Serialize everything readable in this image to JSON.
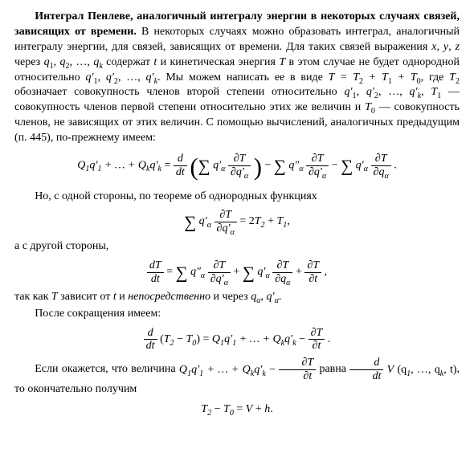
{
  "heading": "Интеграл Пенлеве, аналогичный интегралу энергии в некоторых случаях связей, зависящих от времени.",
  "p1a": " В некоторых случаях можно образовать интеграл, аналогичный интегралу энергии, для связей, зависящих от времени. Для таких связей выражения ",
  "p1_vars1": "x",
  "p1_comma1": ", ",
  "p1_vars2": "y",
  "p1_comma2": ", ",
  "p1_vars3": "z",
  "p1b": " через ",
  "p1_q1": "q",
  "p1_q1s": "1",
  "p1_q2": "q",
  "p1_q2s": "2",
  "p1_dots": ", …, ",
  "p1_qk": "q",
  "p1_qks": "k",
  "p1c": " содержат ",
  "p1_t": "t",
  "p1d": " и кинетическая энергия ",
  "p1_T": "T",
  "p1e": " в этом случае не будет однородной относительно ",
  "p1_qp1": "q′",
  "p1_qp1s": "1",
  "p1_qp2": "q′",
  "p1_qp2s": "2",
  "p1_qpk": "q′",
  "p1_qpks": "k",
  "p1f": ". Мы можем написать ее в виде ",
  "p1_Teq": "T = T",
  "p1_T2s": "2",
  "p1_plus1": " + T",
  "p1_T1s": "1",
  "p1_plus2": " + T",
  "p1_T0s": "0",
  "p1g": ", где ",
  "p1_T2": "T",
  "p1_T2sub": "2",
  "p1h": " обозначает совокупность членов второй степени относительно ",
  "p1i": ", ",
  "p1_T1": "T",
  "p1_T1sub": "1",
  "p1j": " — совокупность членов первой степени относительно этих же величин и ",
  "p1_T0": "T",
  "p1_T0sub": "0",
  "p1k": " — совокупность членов, не зависящих от этих величин. С помощью вычислений, аналогичных предыдущим (п. 445), по-прежнему имеем:",
  "p2": "Но, с одной стороны, по теореме об однородных функциях",
  "p3": "а с другой стороны,",
  "p4a": "так как ",
  "p4_T": "T",
  "p4b": " зависит от ",
  "p4_t": "t",
  "p4c": " и ",
  "p4_direct": "непосредственно",
  "p4d": " и через ",
  "p4_qa": "q",
  "p4_qas": "α",
  "p4_qap": "q′",
  "p4_qaps": "α",
  "p5": "После сокращения имеем:",
  "p6a": "Если окажется, что величина ",
  "p6b": " равна ",
  "p6c": ", то окончательно получим",
  "formula": {
    "Q": "Q",
    "q": "q",
    "qprime": "q′",
    "qdprime": "q″",
    "T": "T",
    "t": "t",
    "d": "d",
    "dt": "dt",
    "partial": "∂",
    "alpha": "α",
    "k": "k",
    "one": "1",
    "two": "2",
    "zero": "0",
    "V": "V",
    "h": "h",
    "dots": " + … + ",
    "eq": " = ",
    "minus": " − ",
    "plus": " + ",
    "comma": ", ",
    "period": ".",
    "commaend": ",",
    "Vargs_open": " (q",
    "Vargs_mid": ", …, q",
    "Vargs_close": ", t)"
  }
}
